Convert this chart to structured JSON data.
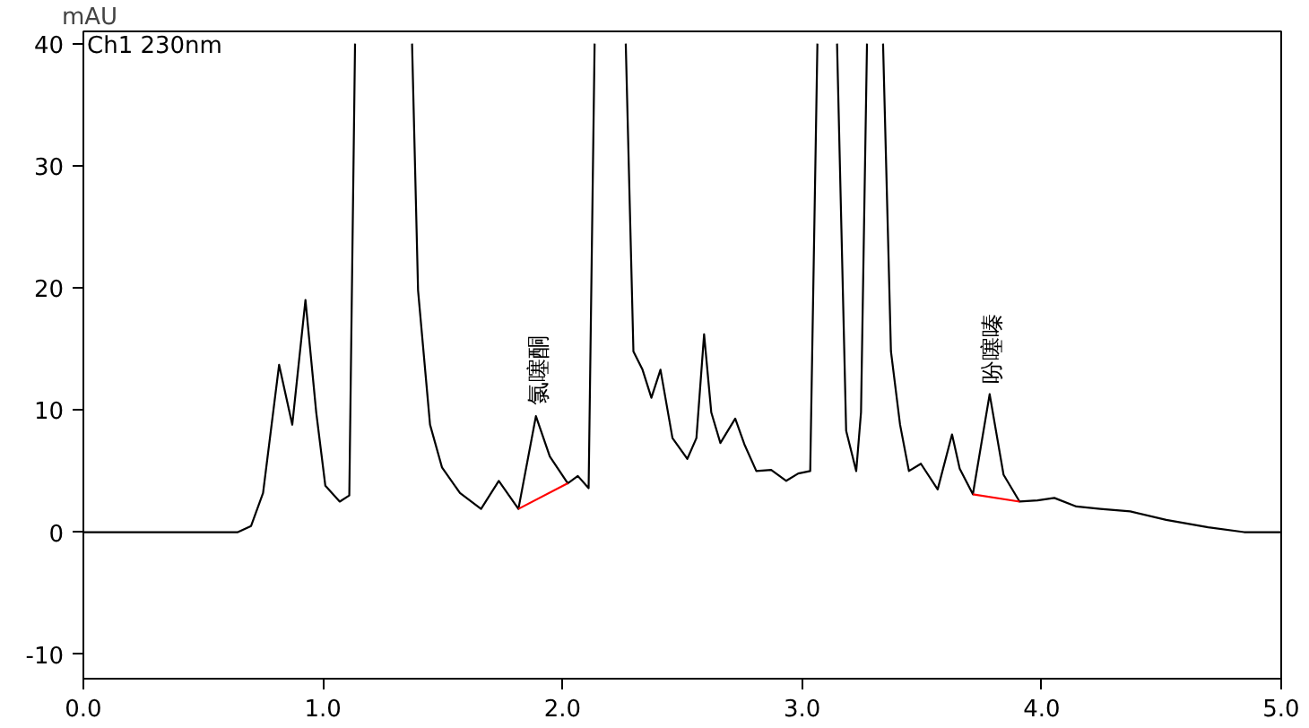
{
  "chart_data": {
    "type": "line",
    "ylabel": "mAU",
    "annotations": [
      "Ch1 230nm",
      {
        "text": "氯噻酮",
        "x": 1.889,
        "y": 9.5
      },
      {
        "text": "吩噻嗪",
        "x": 3.783,
        "y": 11.3
      }
    ],
    "xlim": [
      0,
      5
    ],
    "ylim": [
      -12,
      41
    ],
    "xticks": [
      {
        "value": 0,
        "label": "0.0"
      },
      {
        "value": 1,
        "label": "1.0"
      },
      {
        "value": 2,
        "label": "2.0"
      },
      {
        "value": 3,
        "label": "3.0"
      },
      {
        "value": 4,
        "label": "4.0"
      },
      {
        "value": 5,
        "label": "5.0"
      }
    ],
    "yticks": [
      -10,
      0,
      10,
      20,
      30,
      40
    ],
    "grid": false,
    "marker": "none",
    "line_style": "solid",
    "series": [
      {
        "color": "#000000",
        "x": [
          0,
          0.645,
          0.7,
          0.75,
          0.817,
          0.872,
          0.927,
          0.972,
          1.01,
          1.07,
          1.11,
          1.134,
          1.25,
          1.372,
          1.397,
          1.447,
          1.497,
          1.572,
          1.66,
          1.734,
          1.816,
          1.889,
          1.947,
          2.022,
          2.064,
          2.109,
          2.134,
          2.2,
          2.264,
          2.296,
          2.334,
          2.371,
          2.409,
          2.459,
          2.521,
          2.559,
          2.591,
          2.621,
          2.659,
          2.721,
          2.759,
          2.809,
          2.871,
          2.934,
          2.984,
          3.034,
          3.064,
          3.105,
          3.146,
          3.184,
          3.226,
          3.246,
          3.271,
          3.305,
          3.338,
          3.371,
          3.409,
          3.446,
          3.496,
          3.566,
          3.626,
          3.658,
          3.713,
          3.783,
          3.841,
          3.908,
          3.983,
          4.053,
          4.145,
          4.245,
          4.37,
          4.52,
          4.695,
          4.845,
          5.0
        ],
        "values": [
          0,
          0,
          0.5,
          3.2,
          13.7,
          8.8,
          19.0,
          9.8,
          3.8,
          2.5,
          3.0,
          40,
          null,
          40,
          19.8,
          8.8,
          5.3,
          3.2,
          1.9,
          4.2,
          1.9,
          9.5,
          6.2,
          4.0,
          4.6,
          3.6,
          40,
          null,
          40,
          14.8,
          13.3,
          11.0,
          13.3,
          7.7,
          6.0,
          7.7,
          16.2,
          9.8,
          7.3,
          9.3,
          7.2,
          5.0,
          5.1,
          4.2,
          4.8,
          5.0,
          40,
          null,
          40,
          8.3,
          5.0,
          9.8,
          40,
          null,
          40,
          14.8,
          8.8,
          5.0,
          5.6,
          3.5,
          8.0,
          5.2,
          3.1,
          11.3,
          4.7,
          2.5,
          2.6,
          2.8,
          2.1,
          1.9,
          1.7,
          1.0,
          0.4,
          0.0,
          0.0
        ]
      },
      {
        "color": "#ff0000",
        "x": [
          1.816,
          2.022
        ],
        "values": [
          1.9,
          4.0
        ]
      },
      {
        "color": "#ff0000",
        "x": [
          3.713,
          3.908
        ],
        "values": [
          3.1,
          2.5
        ]
      }
    ]
  }
}
